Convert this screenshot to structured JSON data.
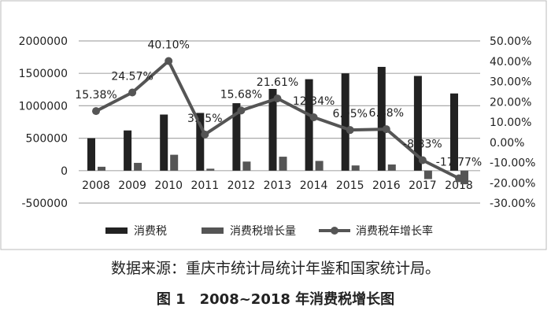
{
  "chart_data": {
    "type": "bar",
    "categories": [
      "2008",
      "2009",
      "2010",
      "2011",
      "2012",
      "2013",
      "2014",
      "2015",
      "2016",
      "2017",
      "2018"
    ],
    "series": [
      {
        "name": "消费税",
        "type": "bar",
        "axis": "left",
        "color": "#222222",
        "values": [
          500000,
          620000,
          865000,
          890000,
          1040000,
          1260000,
          1410000,
          1500000,
          1600000,
          1460000,
          1190000
        ]
      },
      {
        "name": "消费税增长量",
        "type": "bar",
        "axis": "left",
        "color": "#555555",
        "values": [
          60000,
          120000,
          245000,
          30000,
          140000,
          215000,
          150000,
          80000,
          95000,
          -130000,
          -210000
        ]
      },
      {
        "name": "消费税年增长率",
        "type": "line",
        "axis": "right",
        "color": "#555555",
        "values": [
          15.38,
          24.57,
          40.1,
          3.85,
          15.68,
          21.61,
          12.34,
          6.05,
          6.48,
          -8.83,
          -17.77
        ],
        "labels": [
          "15.38%",
          "24.57%",
          "40.10%",
          "3.85%",
          "15.68%",
          "21.61%",
          "12.34%",
          "6.05%",
          "6.48%",
          "-8.83%",
          "-17.77%"
        ]
      }
    ],
    "left_axis": {
      "range": [
        -500000,
        2000000
      ],
      "ticks": [
        "-500000",
        "0",
        "500000",
        "1000000",
        "1500000",
        "2000000"
      ]
    },
    "right_axis": {
      "range": [
        -30,
        50
      ],
      "ticks": [
        "-30.00%",
        "-20.00%",
        "-10.00%",
        "0.00%",
        "10.00%",
        "20.00%",
        "30.00%",
        "40.00%",
        "50.00%"
      ]
    },
    "grid": true,
    "legend": "bottom"
  },
  "source": "数据来源：重庆市统计局统计年鉴和国家统计局。",
  "caption": "图 1　2008~2018 年消费税增长图"
}
